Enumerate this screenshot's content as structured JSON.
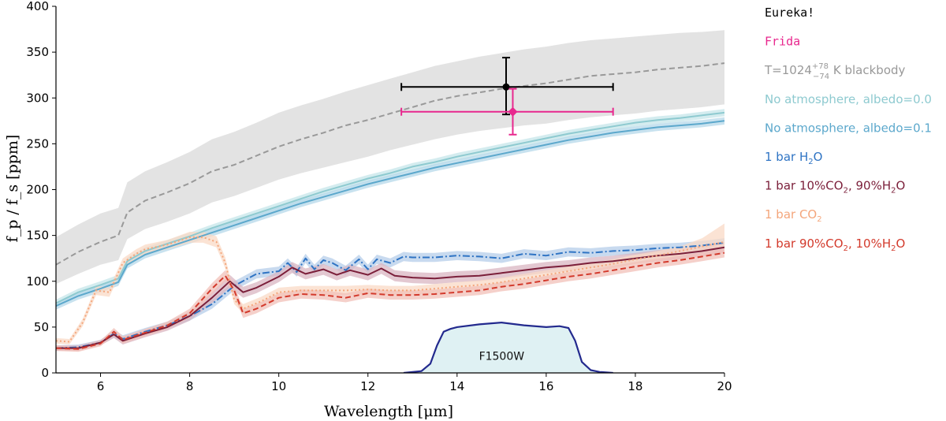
{
  "chart_data": {
    "type": "line",
    "xlabel": "Wavelength [μm]",
    "ylabel": "f_p / f_s [ppm]",
    "xlim": [
      5,
      20
    ],
    "ylim": [
      0,
      400
    ],
    "xticks": [
      6,
      8,
      10,
      12,
      14,
      16,
      18,
      20
    ],
    "yticks": [
      0,
      50,
      100,
      150,
      200,
      250,
      300,
      350,
      400
    ],
    "series": [
      {
        "name": "T=1024 (+78/−74) K blackbody",
        "color": "#999999",
        "style": "dashed",
        "band_color": "#d9d9d9",
        "x": [
          5,
          5.5,
          6,
          6.4,
          6.6,
          7,
          7.5,
          8,
          8.5,
          9,
          9.5,
          10,
          10.5,
          11,
          11.5,
          12,
          12.5,
          13,
          13.5,
          14,
          14.5,
          15,
          15.5,
          16,
          16.5,
          17,
          17.5,
          18,
          18.5,
          19,
          19.5,
          20
        ],
        "y": [
          118,
          132,
          143,
          150,
          175,
          188,
          197,
          207,
          220,
          227,
          237,
          247,
          255,
          262,
          270,
          276,
          283,
          290,
          297,
          302,
          306,
          310,
          313,
          316,
          320,
          324,
          326,
          328,
          331,
          333,
          335,
          338
        ],
        "lower": [
          97,
          108,
          118,
          123,
          146,
          157,
          165,
          174,
          186,
          193,
          202,
          211,
          218,
          224,
          230,
          236,
          243,
          249,
          255,
          260,
          264,
          267,
          270,
          272,
          276,
          279,
          281,
          283,
          286,
          288,
          290,
          293
        ],
        "upper": [
          148,
          162,
          174,
          180,
          208,
          220,
          230,
          241,
          255,
          263,
          273,
          284,
          292,
          299,
          307,
          314,
          321,
          328,
          335,
          340,
          345,
          349,
          353,
          356,
          360,
          363,
          365,
          367,
          369,
          371,
          372,
          374
        ]
      },
      {
        "name": "No atmosphere, albedo=0.0",
        "color": "#8ecad0",
        "style": "solid",
        "band_color": "#c6e6ea",
        "x": [
          5,
          5.5,
          6,
          6.4,
          6.6,
          7,
          7.5,
          8,
          8.5,
          9,
          9.5,
          10,
          10.5,
          11,
          11.5,
          12,
          12.5,
          13,
          13.5,
          14,
          14.5,
          15,
          15.5,
          16,
          16.5,
          17,
          17.5,
          18,
          18.5,
          19,
          19.5,
          20
        ],
        "y": [
          76,
          88,
          96,
          103,
          122,
          133,
          141,
          149,
          158,
          166,
          174,
          182,
          190,
          198,
          205,
          212,
          218,
          225,
          230,
          236,
          241,
          246,
          251,
          256,
          261,
          265,
          269,
          273,
          276,
          278,
          281,
          284
        ],
        "lower": [
          72,
          84,
          92,
          99,
          118,
          129,
          137,
          145,
          154,
          162,
          170,
          178,
          186,
          194,
          201,
          208,
          214,
          221,
          226,
          232,
          237,
          242,
          247,
          252,
          257,
          261,
          265,
          269,
          272,
          274,
          277,
          280
        ],
        "upper": [
          80,
          92,
          100,
          107,
          126,
          137,
          145,
          153,
          162,
          170,
          178,
          186,
          194,
          202,
          209,
          216,
          222,
          229,
          234,
          240,
          245,
          250,
          255,
          260,
          265,
          269,
          273,
          277,
          280,
          282,
          285,
          288
        ]
      },
      {
        "name": "No atmosphere, albedo=0.1",
        "color": "#5ca8cc",
        "style": "solid",
        "band_color": "#b6d8ea",
        "x": [
          5,
          5.5,
          6,
          6.4,
          6.6,
          7,
          7.5,
          8,
          8.5,
          9,
          9.5,
          10,
          10.5,
          11,
          11.5,
          12,
          12.5,
          13,
          13.5,
          14,
          14.5,
          15,
          15.5,
          16,
          16.5,
          17,
          17.5,
          18,
          18.5,
          19,
          19.5,
          20
        ],
        "y": [
          73,
          84,
          92,
          99,
          118,
          129,
          137,
          145,
          153,
          161,
          169,
          177,
          185,
          192,
          199,
          206,
          212,
          218,
          224,
          229,
          234,
          239,
          244,
          249,
          254,
          258,
          262,
          265,
          268,
          270,
          272,
          275
        ],
        "lower": [
          69,
          80,
          88,
          95,
          114,
          125,
          133,
          141,
          149,
          157,
          165,
          173,
          181,
          188,
          195,
          202,
          208,
          214,
          220,
          225,
          230,
          235,
          240,
          245,
          250,
          254,
          258,
          261,
          264,
          266,
          268,
          271
        ],
        "upper": [
          77,
          88,
          96,
          103,
          122,
          133,
          141,
          149,
          157,
          165,
          173,
          181,
          189,
          196,
          203,
          210,
          216,
          222,
          228,
          233,
          238,
          243,
          248,
          253,
          258,
          262,
          266,
          269,
          272,
          274,
          276,
          279
        ]
      },
      {
        "name": "1 bar H2O",
        "color": "#2f74c4",
        "style": "dashdot",
        "band_color": "#b6cdea",
        "x": [
          5,
          5.5,
          6,
          6.3,
          6.5,
          7,
          7.5,
          8,
          8.5,
          9,
          9.5,
          10,
          10.2,
          10.4,
          10.6,
          10.8,
          11,
          11.2,
          11.5,
          11.8,
          12,
          12.2,
          12.5,
          12.8,
          13,
          13.5,
          14,
          14.5,
          15,
          15.5,
          16,
          16.5,
          17,
          17.5,
          18,
          18.5,
          19,
          19.5,
          20
        ],
        "y": [
          27,
          28,
          33,
          43,
          37,
          45,
          52,
          62,
          75,
          95,
          108,
          111,
          120,
          110,
          125,
          113,
          123,
          120,
          112,
          124,
          113,
          124,
          120,
          127,
          126,
          126,
          128,
          127,
          125,
          130,
          128,
          132,
          131,
          133,
          134,
          136,
          137,
          139,
          142
        ],
        "lower": [
          24,
          25,
          30,
          39,
          33,
          41,
          48,
          57,
          70,
          90,
          103,
          106,
          115,
          105,
          120,
          108,
          118,
          115,
          107,
          119,
          108,
          119,
          115,
          122,
          121,
          121,
          123,
          122,
          120,
          125,
          123,
          127,
          126,
          128,
          129,
          131,
          132,
          134,
          137
        ],
        "upper": [
          30,
          31,
          36,
          47,
          41,
          49,
          56,
          67,
          80,
          100,
          113,
          116,
          125,
          115,
          130,
          118,
          128,
          125,
          117,
          129,
          118,
          129,
          125,
          132,
          131,
          131,
          133,
          132,
          130,
          135,
          133,
          137,
          136,
          138,
          139,
          141,
          142,
          144,
          147
        ]
      },
      {
        "name": "1 bar 10%CO2, 90%H2O",
        "color": "#7b1f3a",
        "style": "solid",
        "band_color": "#d9b6c2",
        "x": [
          5,
          5.5,
          6,
          6.3,
          6.5,
          7,
          7.5,
          8,
          8.5,
          8.9,
          9.2,
          9.5,
          10,
          10.3,
          10.6,
          11,
          11.3,
          11.6,
          12,
          12.3,
          12.6,
          13,
          13.5,
          14,
          14.5,
          15,
          15.5,
          16,
          16.5,
          17,
          17.5,
          18,
          18.5,
          19,
          19.5,
          20
        ],
        "y": [
          27,
          27,
          33,
          42,
          35,
          43,
          50,
          62,
          82,
          100,
          88,
          93,
          105,
          115,
          108,
          113,
          107,
          112,
          107,
          114,
          106,
          104,
          103,
          105,
          106,
          109,
          112,
          115,
          117,
          120,
          122,
          125,
          128,
          130,
          133,
          137
        ],
        "lower": [
          24,
          24,
          30,
          38,
          31,
          39,
          46,
          57,
          76,
          93,
          82,
          87,
          99,
          109,
          102,
          107,
          101,
          106,
          101,
          108,
          100,
          98,
          97,
          99,
          100,
          103,
          106,
          109,
          111,
          114,
          116,
          119,
          122,
          124,
          127,
          131
        ],
        "upper": [
          30,
          30,
          36,
          46,
          39,
          47,
          54,
          67,
          88,
          107,
          94,
          99,
          111,
          121,
          114,
          119,
          113,
          118,
          113,
          120,
          112,
          110,
          109,
          111,
          112,
          115,
          118,
          121,
          123,
          126,
          128,
          131,
          134,
          136,
          139,
          143
        ]
      },
      {
        "name": "1 bar CO2",
        "color": "#f4a67c",
        "style": "dotted",
        "band_color": "#fad9c6",
        "x": [
          5,
          5.3,
          5.6,
          5.9,
          6.2,
          6.5,
          6.8,
          7,
          7.5,
          8,
          8.3,
          8.6,
          8.8,
          9,
          9.2,
          9.6,
          10,
          10.5,
          11,
          11.5,
          12,
          12.5,
          13,
          13.5,
          14,
          14.5,
          15,
          15.5,
          16,
          16.5,
          17,
          17.5,
          18,
          18.5,
          19,
          19.5,
          20
        ],
        "y": [
          35,
          34,
          55,
          90,
          88,
          120,
          130,
          135,
          140,
          148,
          148,
          143,
          120,
          80,
          70,
          78,
          88,
          90,
          90,
          90,
          91,
          90,
          90,
          92,
          94,
          96,
          99,
          103,
          107,
          111,
          115,
          119,
          124,
          128,
          133,
          138,
          143
        ],
        "lower": [
          32,
          31,
          51,
          85,
          83,
          115,
          125,
          130,
          135,
          142,
          142,
          137,
          114,
          75,
          65,
          73,
          83,
          85,
          85,
          85,
          86,
          85,
          85,
          87,
          89,
          91,
          94,
          98,
          102,
          106,
          110,
          114,
          119,
          123,
          128,
          133,
          138
        ],
        "upper": [
          38,
          37,
          59,
          95,
          93,
          125,
          135,
          140,
          145,
          154,
          154,
          149,
          126,
          85,
          75,
          83,
          93,
          95,
          95,
          95,
          96,
          95,
          95,
          97,
          99,
          101,
          104,
          108,
          112,
          116,
          120,
          124,
          129,
          133,
          138,
          147,
          163
        ]
      },
      {
        "name": "1 bar 90%CO2, 10%H2O",
        "color": "#d33a2c",
        "style": "dashed",
        "band_color": "#f2c0b8",
        "x": [
          5,
          5.5,
          6,
          6.3,
          6.5,
          7,
          7.5,
          8,
          8.5,
          8.8,
          9,
          9.2,
          9.5,
          10,
          10.5,
          11,
          11.5,
          12,
          12.5,
          13,
          13.5,
          14,
          14.5,
          15,
          15.5,
          16,
          16.5,
          17,
          17.5,
          18,
          18.5,
          19,
          19.5,
          20
        ],
        "y": [
          27,
          26,
          32,
          45,
          36,
          44,
          52,
          65,
          92,
          106,
          90,
          65,
          70,
          82,
          86,
          85,
          82,
          87,
          85,
          85,
          86,
          88,
          90,
          94,
          97,
          101,
          105,
          108,
          112,
          116,
          120,
          123,
          127,
          131
        ],
        "lower": [
          24,
          23,
          29,
          41,
          32,
          40,
          48,
          60,
          86,
          100,
          84,
          60,
          65,
          77,
          81,
          80,
          77,
          82,
          80,
          80,
          81,
          83,
          85,
          89,
          92,
          96,
          100,
          103,
          107,
          111,
          115,
          118,
          122,
          126
        ],
        "upper": [
          30,
          29,
          35,
          49,
          40,
          48,
          56,
          70,
          98,
          112,
          96,
          70,
          75,
          87,
          91,
          90,
          87,
          92,
          90,
          90,
          91,
          93,
          95,
          99,
          102,
          106,
          110,
          113,
          117,
          121,
          125,
          128,
          132,
          136
        ]
      }
    ],
    "observations": [
      {
        "name": "Eureka!",
        "color": "#000000",
        "marker": "circle",
        "x": 15.1,
        "y": 312,
        "xerr_low": 12.75,
        "xerr_high": 17.5,
        "yerr_low": 282,
        "yerr_high": 344
      },
      {
        "name": "Frida",
        "color": "#e8288e",
        "marker": "diamond",
        "x": 15.25,
        "y": 285,
        "xerr_low": 12.75,
        "xerr_high": 17.5,
        "yerr_low": 260,
        "yerr_high": 310
      }
    ],
    "filter": {
      "name": "F1500W",
      "label": "F1500W",
      "color": "#232a8e",
      "fill_color": "#dff1f3",
      "x": [
        12.8,
        13.2,
        13.4,
        13.55,
        13.7,
        13.85,
        14,
        14.5,
        15,
        15.5,
        16,
        16.3,
        16.5,
        16.65,
        16.8,
        17,
        17.2,
        17.5
      ],
      "y": [
        0,
        2,
        10,
        30,
        45,
        48,
        50,
        53,
        55,
        52,
        50,
        51,
        49,
        35,
        12,
        3,
        1,
        0
      ]
    },
    "legend": {
      "placement": "right",
      "entries": [
        {
          "text": "Eureka!",
          "color": "#000000",
          "font": "mono"
        },
        {
          "text": "Frida",
          "color": "#e8288e",
          "font": "mono"
        },
        {
          "text": "T=1024",
          "sup": "+78",
          "sub": "−74",
          "suffix": " K blackbody",
          "color": "#999999"
        },
        {
          "text": "No atmosphere, albedo=0.0",
          "color": "#8ecad0"
        },
        {
          "text": "No atmosphere, albedo=0.1",
          "color": "#5ca8cc"
        },
        {
          "text": "1 bar H",
          "sub1": "2",
          "text2": "O",
          "color": "#2f74c4"
        },
        {
          "text": "1 bar 10%CO",
          "sub1": "2",
          "text2": ", 90%H",
          "sub2": "2",
          "text3": "O",
          "color": "#7b1f3a"
        },
        {
          "text": "1 bar CO",
          "sub1": "2",
          "color": "#f4a67c"
        },
        {
          "text": "1 bar 90%CO",
          "sub1": "2",
          "text2": ", 10%H",
          "sub2": "2",
          "text3": "O",
          "color": "#d33a2c"
        }
      ]
    }
  }
}
